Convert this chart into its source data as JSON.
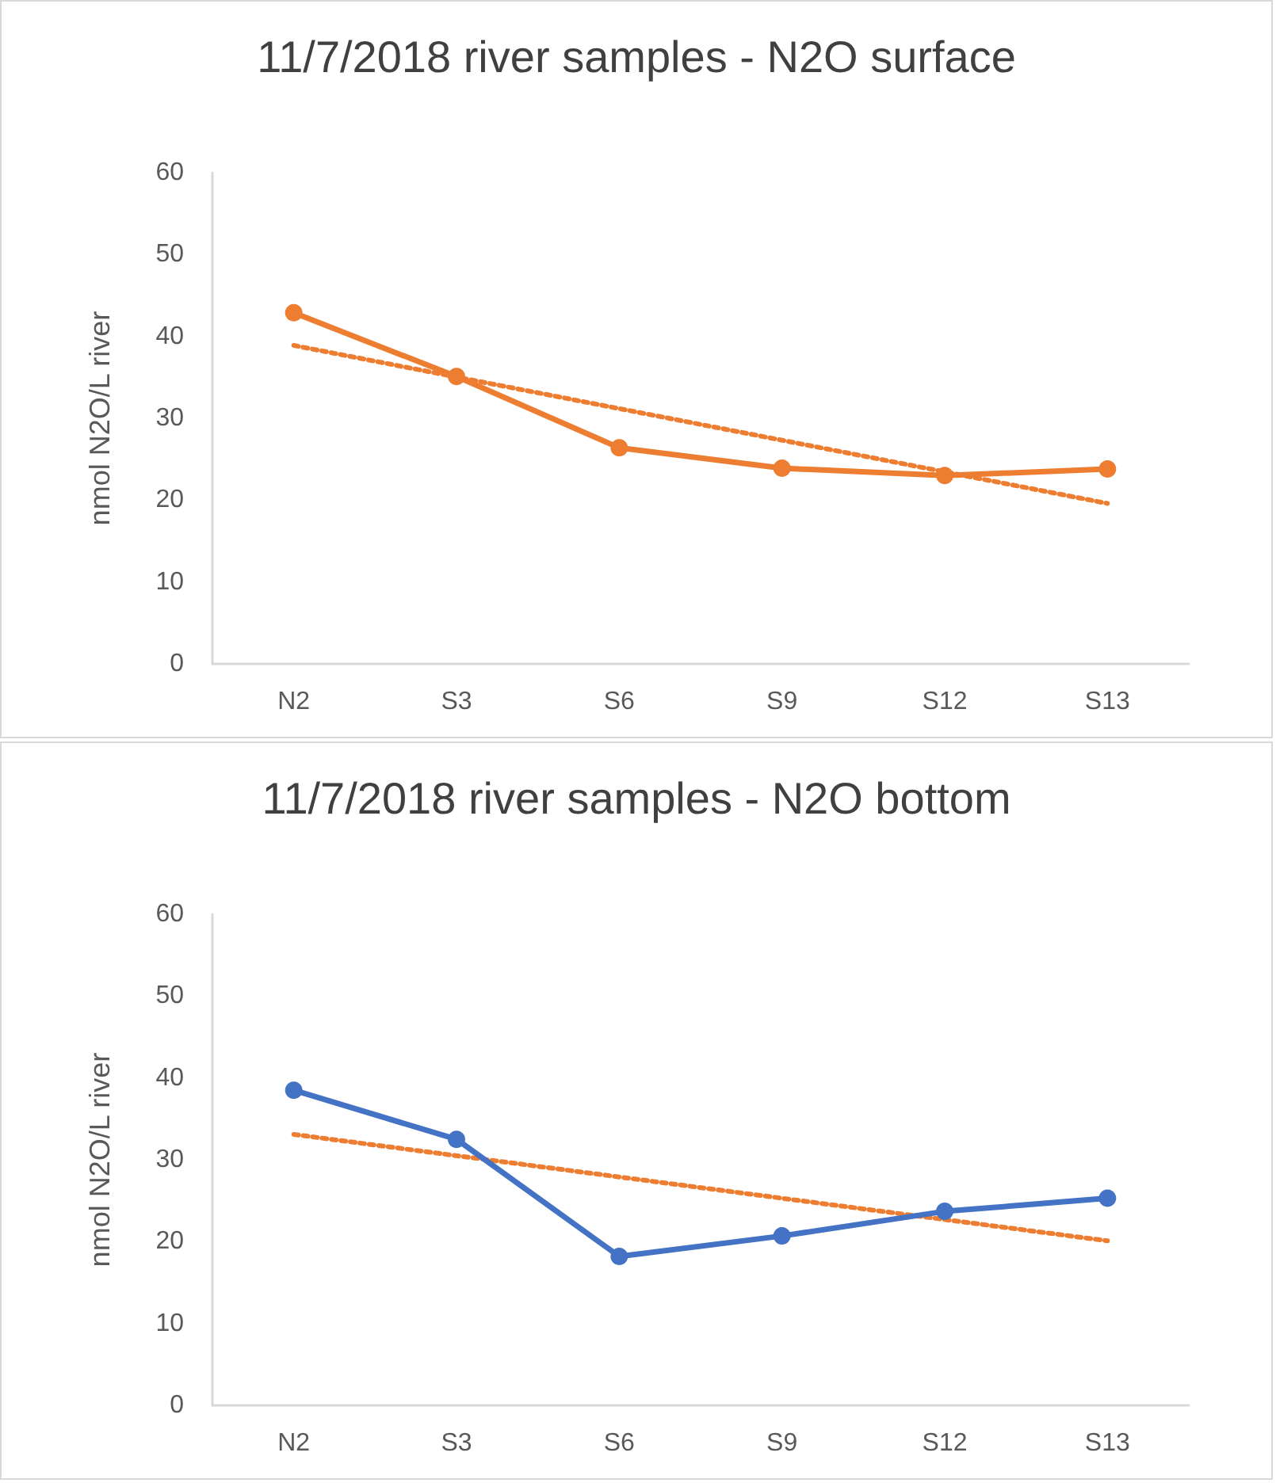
{
  "chart_data": [
    {
      "type": "line",
      "title": "11/7/2018 river samples - N2O surface",
      "ylabel": "nmol N2O/L river",
      "categories": [
        "N2",
        "S3",
        "S6",
        "S9",
        "S12",
        "S13"
      ],
      "ylim": [
        0,
        60
      ],
      "yticks": [
        0,
        10,
        20,
        30,
        40,
        50,
        60
      ],
      "grid": false,
      "marker": "circle",
      "series": [
        {
          "color": "#ed7d31",
          "values": [
            42.9,
            35.1,
            26.4,
            23.9,
            23.0,
            23.8
          ]
        },
        {
          "type": "line",
          "color": "#ed7d31",
          "x": [
            "N2",
            "S13"
          ],
          "values": [
            38.9,
            19.6
          ],
          "line_style": "dotted",
          "marker": "none"
        }
      ]
    },
    {
      "type": "line",
      "title": "11/7/2018 river samples - N2O bottom",
      "ylabel": "nmol N2O/L river",
      "categories": [
        "N2",
        "S3",
        "S6",
        "S9",
        "S12",
        "S13"
      ],
      "ylim": [
        0,
        60
      ],
      "yticks": [
        0,
        10,
        20,
        30,
        40,
        50,
        60
      ],
      "grid": false,
      "marker": "circle",
      "series": [
        {
          "color": "#4472c4",
          "values": [
            38.5,
            32.5,
            18.2,
            20.7,
            23.7,
            25.3
          ]
        },
        {
          "type": "line",
          "color": "#ed7d31",
          "x": [
            "N2",
            "S13"
          ],
          "values": [
            33.1,
            20.1
          ],
          "line_style": "dotted",
          "marker": "none"
        }
      ]
    }
  ]
}
